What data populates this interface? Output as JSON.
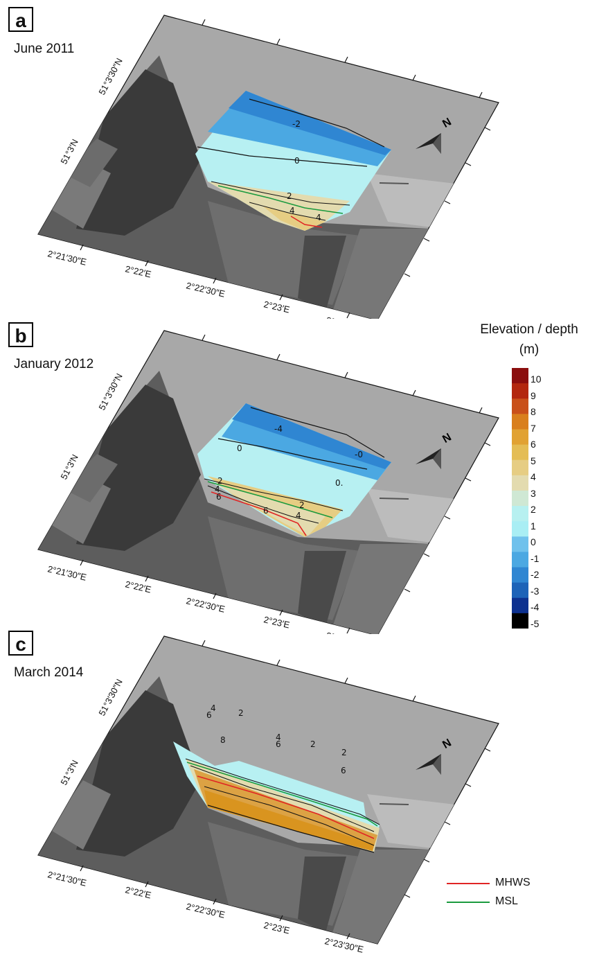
{
  "panels": [
    {
      "letter": "a",
      "date": "June 2011",
      "contour_labels": [
        "-2",
        "0",
        "2",
        "4",
        "4"
      ]
    },
    {
      "letter": "b",
      "date": "January 2012",
      "contour_labels": [
        "-4",
        "0",
        "0.",
        "-0",
        "2",
        "4",
        "6",
        "6",
        "2",
        "4"
      ]
    },
    {
      "letter": "c",
      "date": "March 2014",
      "contour_labels": [
        "4",
        "6",
        "2",
        "8",
        "4",
        "6",
        "2",
        "2",
        "6"
      ]
    }
  ],
  "axes": {
    "lon_ticks": [
      "2°21′30″E",
      "2°22′E",
      "2°22′30″E",
      "2°23′E",
      "2°23′30″E"
    ],
    "lat_ticks": [
      "51°3′30″N",
      "51°3′N"
    ]
  },
  "north_label": "N",
  "colorbar": {
    "title_line1": "Elevation / depth",
    "title_line2": "(m)",
    "labels": [
      "10",
      "9",
      "8",
      "7",
      "6",
      "5",
      "4",
      "3",
      "2",
      "1",
      "0",
      "-1",
      "-2",
      "-3",
      "-4",
      "-5"
    ],
    "colors": [
      "#8b0e0e",
      "#b3270f",
      "#c9501a",
      "#d97f1d",
      "#e1a233",
      "#e4bd55",
      "#e6cd83",
      "#e3dbaf",
      "#cfe8d4",
      "#b7f0f0",
      "#a9eef4",
      "#6fc1ec",
      "#4ba8e2",
      "#2f86d2",
      "#1d63b8",
      "#0d318f",
      "#000000"
    ]
  },
  "line_legend": [
    {
      "name": "MHWS",
      "color": "#e02424"
    },
    {
      "name": "MSL",
      "color": "#1a9a3e"
    }
  ],
  "colors": {
    "background": "#ffffff",
    "sea": "#a7a7a7",
    "land": "#5e5e5e",
    "contour": "#111111"
  }
}
